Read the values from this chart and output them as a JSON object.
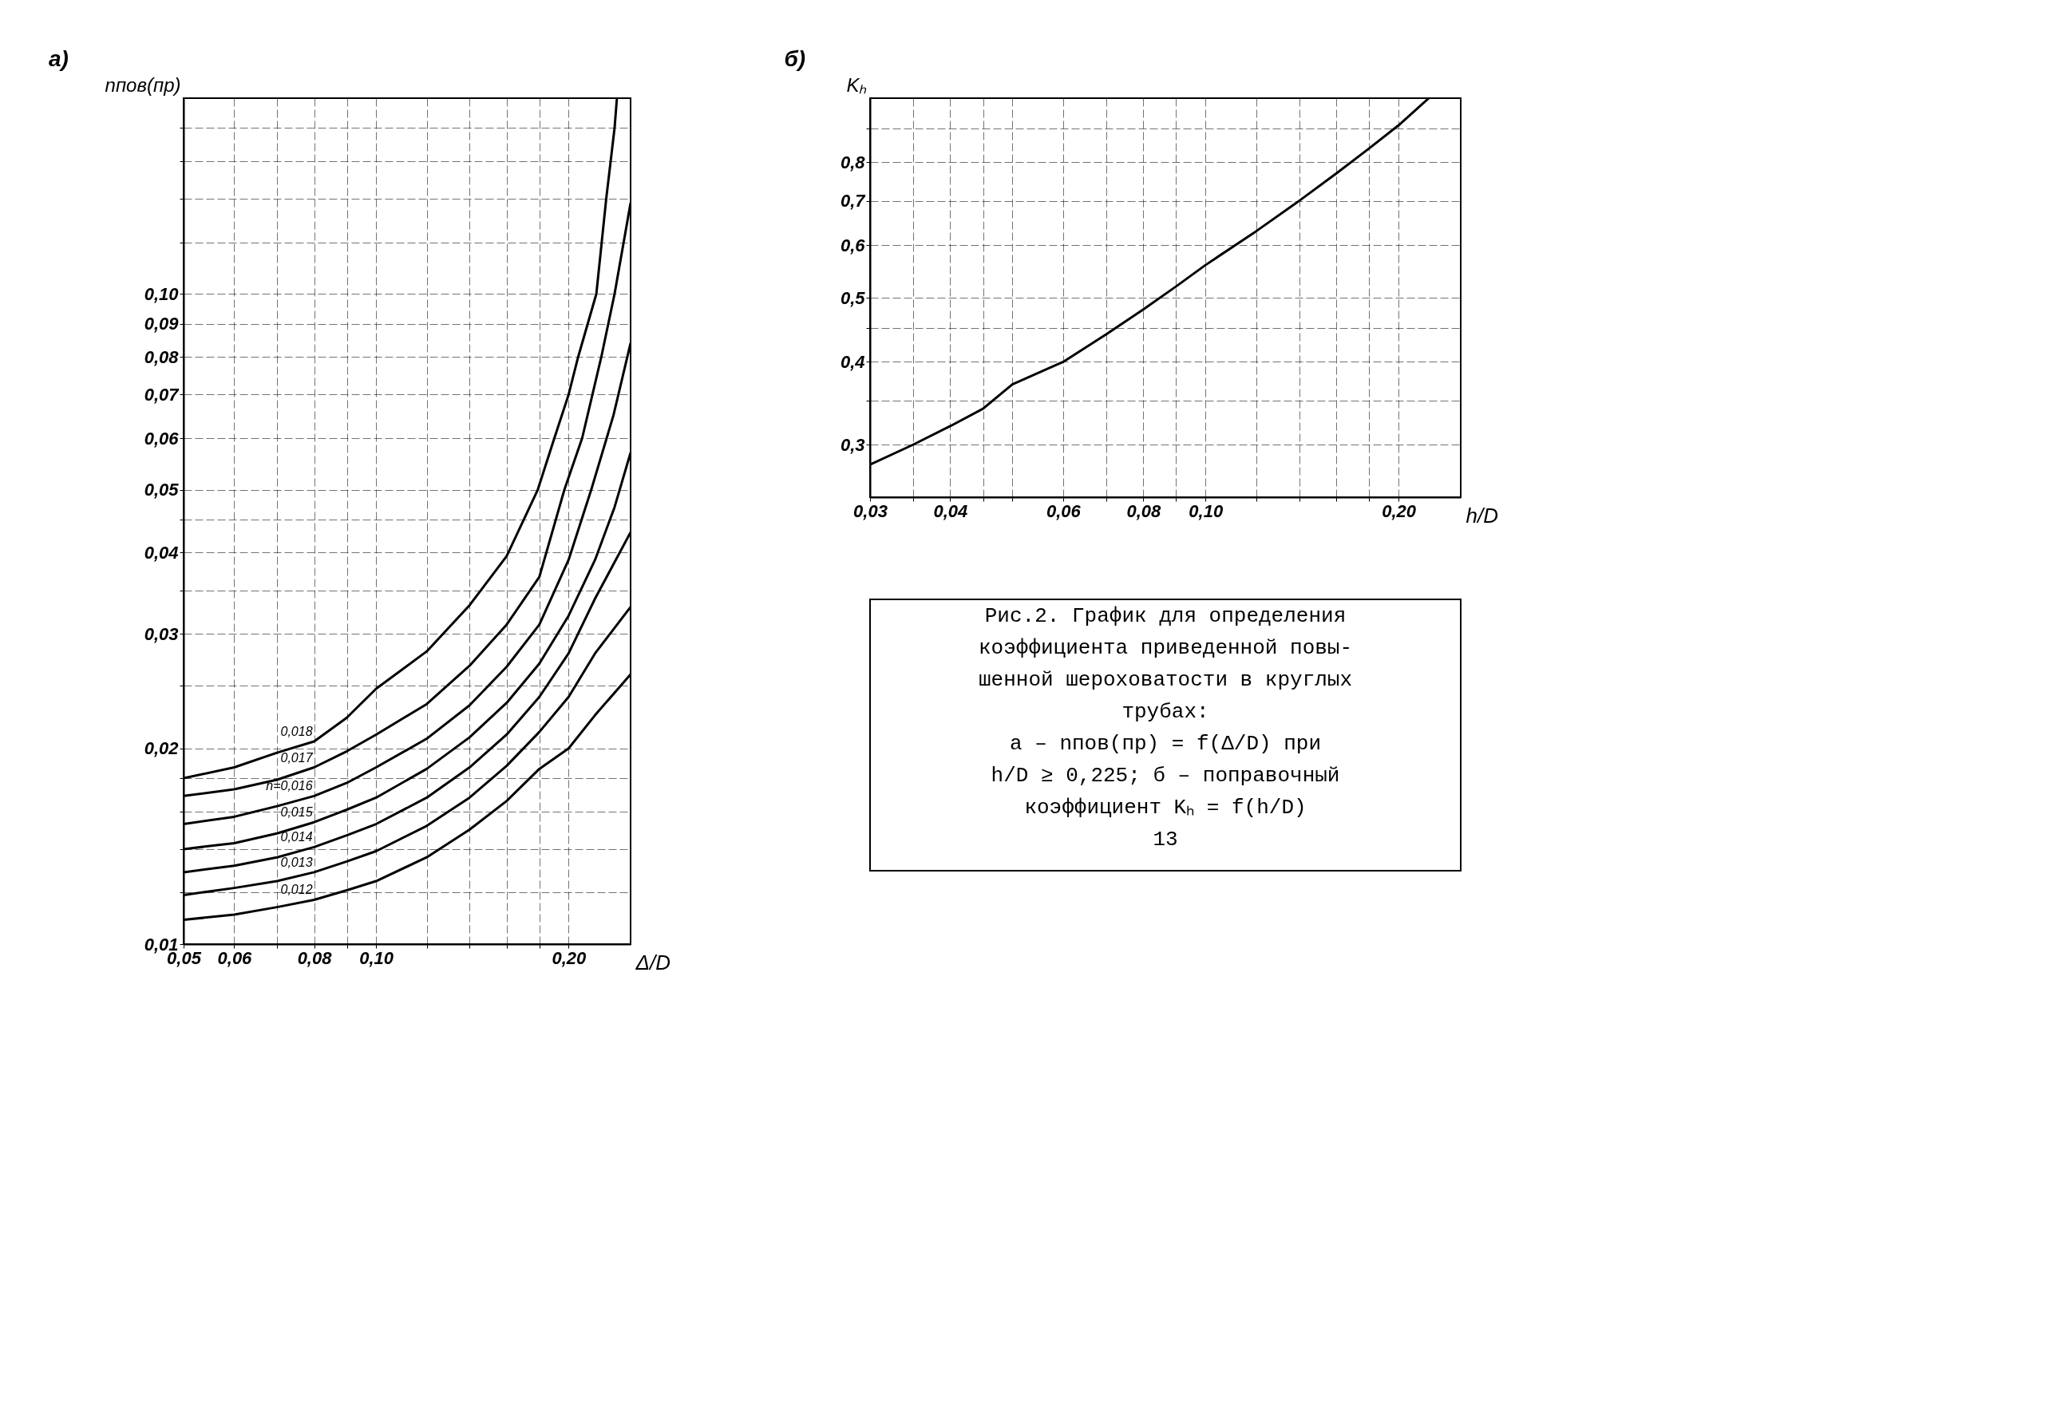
{
  "chart_data": [
    {
      "type": "line",
      "title": "а)",
      "xlabel": "Δ/D",
      "ylabel": "nпов(пр)",
      "log": "xy",
      "grid": true,
      "line_style": "solid",
      "xlim": [
        0.05,
        0.25
      ],
      "ylim": [
        0.01,
        0.2
      ],
      "xticks": [
        {
          "value": 0.05,
          "label": "0,05"
        },
        {
          "value": 0.06,
          "label": "0,06"
        },
        {
          "value": 0.07,
          "label": null
        },
        {
          "value": 0.08,
          "label": "0,08"
        },
        {
          "value": 0.09,
          "label": null
        },
        {
          "value": 0.1,
          "label": "0,10"
        },
        {
          "value": 0.12,
          "label": null
        },
        {
          "value": 0.14,
          "label": null
        },
        {
          "value": 0.16,
          "label": null
        },
        {
          "value": 0.18,
          "label": null
        },
        {
          "value": 0.2,
          "label": "0,20"
        }
      ],
      "yticks": [
        {
          "value": 0.01,
          "label": "0,01"
        },
        {
          "value": 0.012,
          "label": null
        },
        {
          "value": 0.014,
          "label": null
        },
        {
          "value": 0.016,
          "label": null
        },
        {
          "value": 0.018,
          "label": null
        },
        {
          "value": 0.02,
          "label": "0,02"
        },
        {
          "value": 0.025,
          "label": null
        },
        {
          "value": 0.03,
          "label": "0,03"
        },
        {
          "value": 0.035,
          "label": null
        },
        {
          "value": 0.04,
          "label": "0,04"
        },
        {
          "value": 0.045,
          "label": null
        },
        {
          "value": 0.05,
          "label": "0,05"
        },
        {
          "value": 0.06,
          "label": "0,06"
        },
        {
          "value": 0.07,
          "label": "0,07"
        },
        {
          "value": 0.08,
          "label": "0,08"
        },
        {
          "value": 0.09,
          "label": "0,09"
        },
        {
          "value": 0.1,
          "label": "0,10"
        },
        {
          "value": 0.12,
          "label": null
        },
        {
          "value": 0.14,
          "label": null
        },
        {
          "value": 0.16,
          "label": null
        },
        {
          "value": 0.18,
          "label": null
        }
      ],
      "series": [
        {
          "name": "0,018",
          "color": "#000000",
          "x": [
            0.05,
            0.06,
            0.07,
            0.08,
            0.09,
            0.1,
            0.12,
            0.14,
            0.16,
            0.179,
            0.19,
            0.2,
            0.207,
            0.221,
            0.229,
            0.236,
            0.238
          ],
          "values": [
            0.018,
            0.0187,
            0.0197,
            0.0205,
            0.0223,
            0.0247,
            0.0282,
            0.0332,
            0.0395,
            0.05,
            0.06,
            0.07,
            0.08,
            0.1,
            0.14,
            0.18,
            0.2
          ]
        },
        {
          "name": "0,017",
          "color": "#000000",
          "x": [
            0.05,
            0.06,
            0.07,
            0.08,
            0.09,
            0.1,
            0.12,
            0.14,
            0.16,
            0.18,
            0.197,
            0.21,
            0.225,
            0.236,
            0.25
          ],
          "values": [
            0.0169,
            0.0173,
            0.0179,
            0.0187,
            0.0198,
            0.021,
            0.0234,
            0.0268,
            0.031,
            0.0367,
            0.05,
            0.06,
            0.08,
            0.1,
            0.138
          ]
        },
        {
          "name": "n=0,016",
          "color": "#000000",
          "x": [
            0.05,
            0.06,
            0.07,
            0.08,
            0.09,
            0.1,
            0.12,
            0.14,
            0.16,
            0.18,
            0.2,
            0.217,
            0.235,
            0.25
          ],
          "values": [
            0.0153,
            0.0157,
            0.0163,
            0.0169,
            0.0177,
            0.0187,
            0.0207,
            0.0233,
            0.0267,
            0.031,
            0.039,
            0.05,
            0.065,
            0.084
          ]
        },
        {
          "name": "0,015",
          "color": "#000000",
          "x": [
            0.05,
            0.06,
            0.07,
            0.08,
            0.09,
            0.1,
            0.12,
            0.14,
            0.16,
            0.18,
            0.2,
            0.22,
            0.236,
            0.25
          ],
          "values": [
            0.014,
            0.0143,
            0.0148,
            0.0154,
            0.0161,
            0.0168,
            0.0186,
            0.0208,
            0.0235,
            0.027,
            0.032,
            0.039,
            0.047,
            0.057
          ]
        },
        {
          "name": "0,014",
          "color": "#000000",
          "x": [
            0.05,
            0.06,
            0.07,
            0.08,
            0.09,
            0.1,
            0.12,
            0.14,
            0.16,
            0.18,
            0.2,
            0.22,
            0.25
          ],
          "values": [
            0.0129,
            0.0132,
            0.0136,
            0.0141,
            0.0147,
            0.0153,
            0.0168,
            0.0187,
            0.021,
            0.024,
            0.028,
            0.034,
            0.043
          ]
        },
        {
          "name": "0,013",
          "color": "#000000",
          "x": [
            0.05,
            0.06,
            0.07,
            0.08,
            0.09,
            0.1,
            0.12,
            0.14,
            0.16,
            0.18,
            0.2,
            0.22,
            0.25
          ],
          "values": [
            0.0119,
            0.0122,
            0.0125,
            0.0129,
            0.0134,
            0.0139,
            0.0152,
            0.0168,
            0.0188,
            0.0212,
            0.024,
            0.028,
            0.033
          ]
        },
        {
          "name": "0,012",
          "color": "#000000",
          "x": [
            0.05,
            0.06,
            0.07,
            0.08,
            0.09,
            0.1,
            0.12,
            0.14,
            0.16,
            0.18,
            0.2,
            0.22,
            0.25
          ],
          "values": [
            0.0109,
            0.0111,
            0.0114,
            0.0117,
            0.0121,
            0.0125,
            0.0136,
            0.015,
            0.0166,
            0.0186,
            0.02,
            0.0225,
            0.026
          ]
        }
      ]
    },
    {
      "type": "line",
      "title": "б)",
      "xlabel": "h/D",
      "ylabel": "Kₕ",
      "log": "xy",
      "grid": true,
      "line_style": "solid",
      "xlim": [
        0.03,
        0.25
      ],
      "ylim": [
        0.25,
        1.0
      ],
      "xticks": [
        {
          "value": 0.03,
          "label": "0,03"
        },
        {
          "value": 0.035,
          "label": null
        },
        {
          "value": 0.04,
          "label": "0,04"
        },
        {
          "value": 0.045,
          "label": null
        },
        {
          "value": 0.05,
          "label": null
        },
        {
          "value": 0.06,
          "label": "0,06"
        },
        {
          "value": 0.07,
          "label": null
        },
        {
          "value": 0.08,
          "label": "0,08"
        },
        {
          "value": 0.09,
          "label": null
        },
        {
          "value": 0.1,
          "label": "0,10"
        },
        {
          "value": 0.12,
          "label": null
        },
        {
          "value": 0.14,
          "label": null
        },
        {
          "value": 0.16,
          "label": null
        },
        {
          "value": 0.18,
          "label": null
        },
        {
          "value": 0.2,
          "label": "0,20"
        }
      ],
      "yticks": [
        {
          "value": 0.3,
          "label": "0,3"
        },
        {
          "value": 0.35,
          "label": null
        },
        {
          "value": 0.4,
          "label": "0,4"
        },
        {
          "value": 0.45,
          "label": null
        },
        {
          "value": 0.5,
          "label": "0,5"
        },
        {
          "value": 0.6,
          "label": "0,6"
        },
        {
          "value": 0.7,
          "label": "0,7"
        },
        {
          "value": 0.8,
          "label": "0,8"
        },
        {
          "value": 0.9,
          "label": null
        }
      ],
      "series": [
        {
          "color": "#000000",
          "x": [
            0.03,
            0.035,
            0.04,
            0.045,
            0.05,
            0.06,
            0.07,
            0.08,
            0.09,
            0.1,
            0.12,
            0.14,
            0.16,
            0.18,
            0.2,
            0.223
          ],
          "values": [
            0.28,
            0.3,
            0.32,
            0.34,
            0.37,
            0.4,
            0.44,
            0.48,
            0.52,
            0.56,
            0.63,
            0.7,
            0.77,
            0.84,
            0.91,
            1.0
          ]
        }
      ]
    },
    {
      "type": "other",
      "annotations": [
        "Рис.2. График для определения",
        "коэффициента приведенной повы-",
        "шенной шероховатости в круглых",
        "трубах:",
        "а – nпов(пр) = f(Δ/D) при",
        "h/D ≥ 0,225; б – поправочный",
        "коэффициент Kₕ = f(h/D)",
        "13"
      ]
    }
  ]
}
